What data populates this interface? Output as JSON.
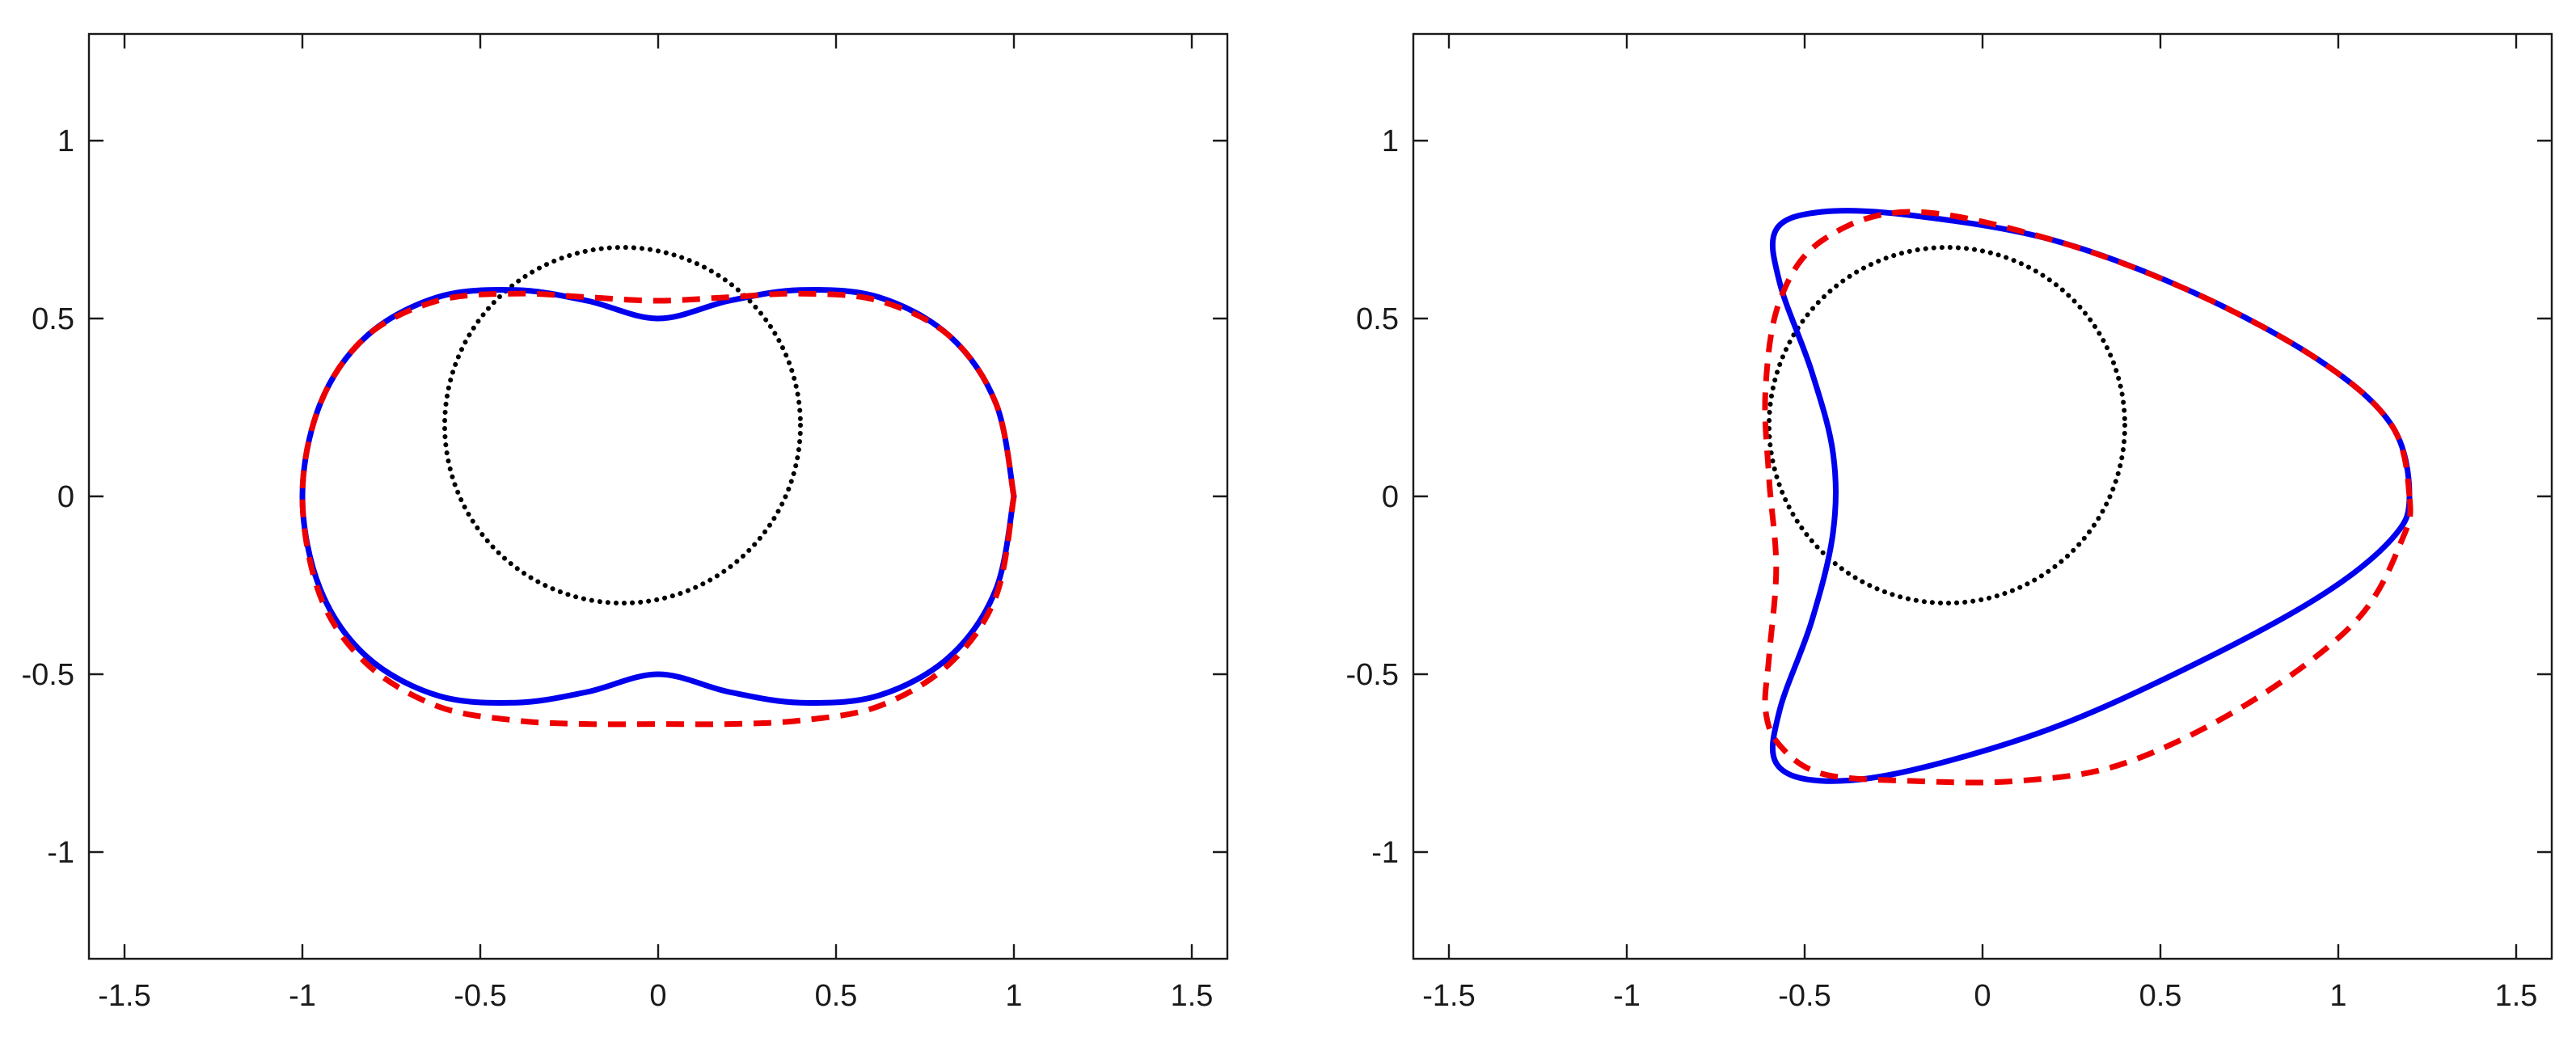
{
  "chart_data": [
    {
      "type": "line",
      "title": "",
      "xlabel": "",
      "ylabel": "",
      "xlim": [
        -1.6,
        1.6
      ],
      "ylim": [
        -1.3,
        1.3
      ],
      "xticks": [
        -1.5,
        -1,
        -0.5,
        0,
        0.5,
        1,
        1.5
      ],
      "yticks": [
        -1,
        -0.5,
        0,
        0.5,
        1
      ],
      "xtick_labels": [
        "-1.5",
        "-1",
        "-0.5",
        "0",
        "0.5",
        "1",
        "1.5"
      ],
      "ytick_labels": [
        "-1",
        "-0.5",
        "0",
        "0.5",
        "1"
      ],
      "grid": false,
      "series": [
        {
          "style": "solid",
          "color": "#0000ee",
          "x": [
            1.0,
            0.95,
            0.82,
            0.62,
            0.4,
            0.2,
            0.0,
            -0.2,
            -0.4,
            -0.62,
            -0.82,
            -0.95,
            -1.0,
            -0.95,
            -0.82,
            -0.62,
            -0.4,
            -0.2,
            0.0,
            0.2,
            0.4,
            0.62,
            0.82,
            0.95,
            1.0
          ],
          "y": [
            0.0,
            0.26,
            0.45,
            0.56,
            0.58,
            0.55,
            0.5,
            0.55,
            0.58,
            0.56,
            0.45,
            0.26,
            0.0,
            -0.26,
            -0.45,
            -0.56,
            -0.58,
            -0.55,
            -0.5,
            -0.55,
            -0.58,
            -0.56,
            -0.45,
            -0.26,
            0.0
          ]
        },
        {
          "style": "dashed",
          "color": "#ee0000",
          "x": [
            1.0,
            0.95,
            0.82,
            0.62,
            0.4,
            0.2,
            0.0,
            -0.2,
            -0.4,
            -0.62,
            -0.82,
            -0.95,
            -1.0,
            -0.95,
            -0.82,
            -0.62,
            -0.4,
            -0.2,
            0.0,
            0.2,
            0.4,
            0.62,
            0.82,
            0.95,
            1.0
          ],
          "y": [
            0.0,
            0.26,
            0.45,
            0.55,
            0.57,
            0.56,
            0.55,
            0.56,
            0.57,
            0.55,
            0.45,
            0.26,
            0.0,
            -0.28,
            -0.47,
            -0.59,
            -0.63,
            -0.64,
            -0.64,
            -0.64,
            -0.63,
            -0.59,
            -0.47,
            -0.28,
            0.0
          ]
        },
        {
          "style": "dotted",
          "color": "#000000",
          "shape": "circle",
          "center": [
            -0.1,
            0.2
          ],
          "radius": 0.5
        }
      ]
    },
    {
      "type": "line",
      "title": "",
      "xlabel": "",
      "ylabel": "",
      "xlim": [
        -1.6,
        1.6
      ],
      "ylim": [
        -1.3,
        1.3
      ],
      "xticks": [
        -1.5,
        -1,
        -0.5,
        0,
        0.5,
        1,
        1.5
      ],
      "yticks": [
        -1,
        -0.5,
        0,
        0.5,
        1
      ],
      "xtick_labels": [
        "-1.5",
        "-1",
        "-0.5",
        "0",
        "0.5",
        "1",
        "1.5"
      ],
      "ytick_labels": [
        "-1",
        "-0.5",
        "0",
        "0.5",
        "1"
      ],
      "grid": false,
      "series": [
        {
          "style": "solid",
          "color": "#0000ee",
          "x": [
            1.2,
            1.15,
            0.95,
            0.6,
            0.2,
            -0.2,
            -0.45,
            -0.58,
            -0.57,
            -0.48,
            -0.42,
            -0.42,
            -0.48,
            -0.57,
            -0.58,
            -0.45,
            -0.2,
            0.2,
            0.6,
            0.95,
            1.15,
            1.2
          ],
          "y": [
            0.0,
            0.2,
            0.38,
            0.57,
            0.72,
            0.79,
            0.8,
            0.75,
            0.6,
            0.35,
            0.12,
            -0.1,
            -0.35,
            -0.6,
            -0.75,
            -0.8,
            -0.77,
            -0.65,
            -0.47,
            -0.28,
            -0.12,
            0.0
          ],
          "closed": true
        },
        {
          "style": "dashed",
          "color": "#ee0000",
          "x": [
            1.2,
            1.15,
            0.95,
            0.6,
            0.2,
            -0.2,
            -0.45,
            -0.57,
            -0.61,
            -0.6,
            -0.58,
            -0.6,
            -0.61,
            -0.57,
            -0.45,
            -0.2,
            0.1,
            0.4,
            0.75,
            1.05,
            1.18,
            1.2
          ],
          "y": [
            0.0,
            0.2,
            0.38,
            0.57,
            0.72,
            0.8,
            0.72,
            0.55,
            0.3,
            0.05,
            -0.2,
            -0.45,
            -0.6,
            -0.7,
            -0.78,
            -0.8,
            -0.8,
            -0.75,
            -0.58,
            -0.35,
            -0.12,
            0.0
          ],
          "closed": true
        },
        {
          "style": "dotted",
          "color": "#000000",
          "shape": "circle",
          "center": [
            -0.1,
            0.2
          ],
          "radius": 0.5
        }
      ]
    }
  ]
}
